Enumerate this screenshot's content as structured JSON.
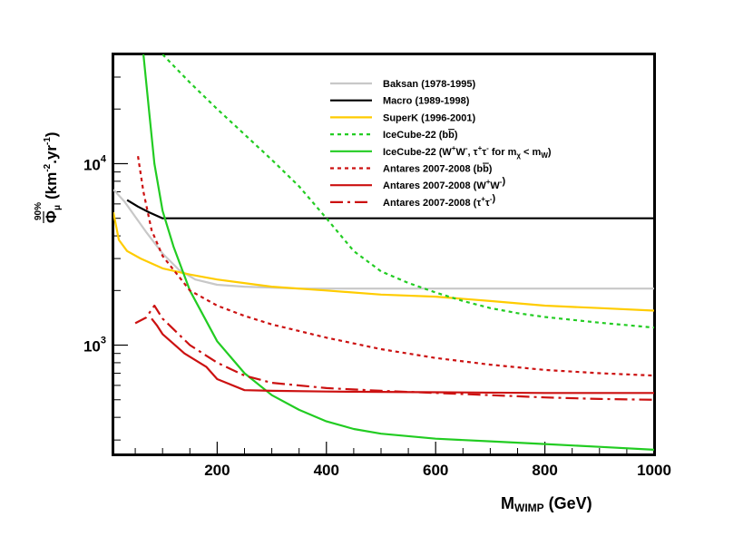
{
  "chart_data": {
    "type": "line",
    "title": "",
    "xlabel": "M_WIMP (GeV)",
    "xlabel_main": "M",
    "xlabel_sub": "WIMP",
    "xlabel_unit": "(GeV)",
    "ylabel": "Φ_μ^90% (km^-2·yr^-1)",
    "ylabel_sup": "90%",
    "ylabel_sub": "μ",
    "ylabel_unit": "(km",
    "ylabel_unit_exp": "-2",
    "ylabel_unit_mid": ".yr",
    "ylabel_unit_exp2": "-1",
    "ylabel_unit_end": ")",
    "xlim": [
      10,
      1000
    ],
    "ylim": [
      250,
      40000
    ],
    "yscale": "log",
    "legend_position": "top-right",
    "x_ticks": [
      {
        "value": 200,
        "label": "200"
      },
      {
        "value": 400,
        "label": "400"
      },
      {
        "value": 600,
        "label": "600"
      },
      {
        "value": 800,
        "label": "800"
      },
      {
        "value": 1000,
        "label": "1000"
      }
    ],
    "y_ticks": [
      {
        "value": 1000,
        "base": "10",
        "exp": "3"
      },
      {
        "value": 10000,
        "base": "10",
        "exp": "4"
      }
    ],
    "series": [
      {
        "name": "Baksan (1978-1995)",
        "color": "#c8c8c8",
        "dash": "solid",
        "points": [
          [
            10,
            7200
          ],
          [
            30,
            6200
          ],
          [
            50,
            5100
          ],
          [
            70,
            4200
          ],
          [
            100,
            3200
          ],
          [
            130,
            2600
          ],
          [
            160,
            2300
          ],
          [
            200,
            2150
          ],
          [
            250,
            2100
          ],
          [
            350,
            2050
          ],
          [
            500,
            2050
          ],
          [
            700,
            2050
          ],
          [
            1000,
            2050
          ]
        ]
      },
      {
        "name": "Macro (1989-1998)",
        "color": "#000000",
        "dash": "solid",
        "points": [
          [
            35,
            6300
          ],
          [
            55,
            5800
          ],
          [
            75,
            5400
          ],
          [
            100,
            5000
          ],
          [
            200,
            5000
          ],
          [
            400,
            5000
          ],
          [
            600,
            5000
          ],
          [
            800,
            5000
          ],
          [
            1000,
            5000
          ]
        ]
      },
      {
        "name": "SuperK (1996-2001)",
        "color": "#ffcc00",
        "dash": "solid",
        "points": [
          [
            10,
            5400
          ],
          [
            20,
            3800
          ],
          [
            35,
            3300
          ],
          [
            60,
            3000
          ],
          [
            100,
            2650
          ],
          [
            150,
            2450
          ],
          [
            200,
            2300
          ],
          [
            300,
            2100
          ],
          [
            400,
            2000
          ],
          [
            500,
            1900
          ],
          [
            600,
            1850
          ],
          [
            700,
            1750
          ],
          [
            800,
            1650
          ],
          [
            900,
            1600
          ],
          [
            1000,
            1550
          ]
        ]
      },
      {
        "name": "IceCube-22 (bb̄)",
        "color": "#22cc22",
        "dash": "dotted",
        "points": [
          [
            100,
            40000
          ],
          [
            150,
            28000
          ],
          [
            200,
            20000
          ],
          [
            250,
            14500
          ],
          [
            300,
            10500
          ],
          [
            350,
            7500
          ],
          [
            400,
            5000
          ],
          [
            450,
            3300
          ],
          [
            500,
            2550
          ],
          [
            550,
            2200
          ],
          [
            600,
            1950
          ],
          [
            650,
            1750
          ],
          [
            700,
            1600
          ],
          [
            750,
            1500
          ],
          [
            800,
            1430
          ],
          [
            900,
            1330
          ],
          [
            1000,
            1250
          ]
        ]
      },
      {
        "name": "IceCube-22 (W+W-, τ+τ- for mχ < mW)",
        "color": "#22cc22",
        "dash": "solid",
        "points": [
          [
            65,
            40000
          ],
          [
            75,
            20000
          ],
          [
            85,
            10000
          ],
          [
            100,
            5500
          ],
          [
            120,
            3500
          ],
          [
            150,
            2000
          ],
          [
            200,
            1050
          ],
          [
            250,
            700
          ],
          [
            300,
            530
          ],
          [
            350,
            440
          ],
          [
            400,
            380
          ],
          [
            450,
            345
          ],
          [
            500,
            325
          ],
          [
            600,
            305
          ],
          [
            700,
            295
          ],
          [
            800,
            285
          ],
          [
            900,
            275
          ],
          [
            1000,
            265
          ]
        ]
      },
      {
        "name": "Antares 2007-2008 (bb̄)",
        "color": "#cc1111",
        "dash": "dotted",
        "points": [
          [
            55,
            11000
          ],
          [
            65,
            7000
          ],
          [
            80,
            4300
          ],
          [
            100,
            3100
          ],
          [
            150,
            2000
          ],
          [
            200,
            1650
          ],
          [
            250,
            1450
          ],
          [
            300,
            1300
          ],
          [
            400,
            1100
          ],
          [
            500,
            950
          ],
          [
            600,
            850
          ],
          [
            700,
            780
          ],
          [
            800,
            730
          ],
          [
            900,
            700
          ],
          [
            1000,
            680
          ]
        ]
      },
      {
        "name": "Antares 2007-2008 (W+W-)",
        "color": "#cc1111",
        "dash": "solid",
        "points": [
          [
            80,
            1400
          ],
          [
            90,
            1280
          ],
          [
            100,
            1150
          ],
          [
            140,
            900
          ],
          [
            180,
            760
          ],
          [
            200,
            650
          ],
          [
            250,
            565
          ],
          [
            300,
            560
          ],
          [
            400,
            555
          ],
          [
            600,
            550
          ],
          [
            800,
            545
          ],
          [
            1000,
            545
          ]
        ]
      },
      {
        "name": "Antares 2007-2008 (τ+τ-)",
        "color": "#cc1111",
        "dash": "dashdot",
        "points": [
          [
            50,
            1320
          ],
          [
            70,
            1420
          ],
          [
            85,
            1650
          ],
          [
            100,
            1400
          ],
          [
            150,
            1000
          ],
          [
            200,
            800
          ],
          [
            250,
            680
          ],
          [
            300,
            620
          ],
          [
            400,
            580
          ],
          [
            500,
            560
          ],
          [
            600,
            545
          ],
          [
            700,
            530
          ],
          [
            800,
            515
          ],
          [
            900,
            505
          ],
          [
            1000,
            500
          ]
        ]
      }
    ],
    "legend": [
      {
        "label": "Baksan (1978-1995)"
      },
      {
        "label": "Macro (1989-1998)"
      },
      {
        "label": "SuperK (1996-2001)"
      },
      {
        "label": "IceCube-22 (b",
        "bar": "b",
        "tail": ")"
      },
      {
        "label": "IceCube-22 (W",
        "sup1": "+",
        "mid1": "W",
        "sup2": "-",
        "mid2": ", τ",
        "sup3": "+",
        "mid3": "τ",
        "sup4": "-",
        "mid4": " for m",
        "sub1": "χ",
        "mid5": " < m",
        "sub2": "W",
        "tail": ")"
      },
      {
        "label": "Antares 2007-2008 (b",
        "bar": "b",
        "tail": ")"
      },
      {
        "label": "Antares 2007-2008 (W",
        "sup1": "+",
        "mid1": "W",
        "sup2": "-",
        "tail": ")"
      },
      {
        "label": "Antares 2007-2008 (τ",
        "sup1": "+",
        "mid1": "τ",
        "sup2": "-",
        "tail": ")"
      }
    ]
  }
}
